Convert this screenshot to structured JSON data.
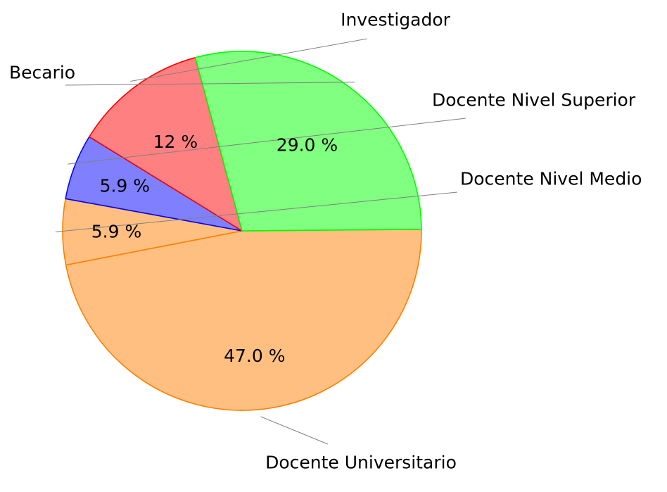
{
  "chart_data": {
    "type": "pie",
    "slices": [
      {
        "name": "Docente Universitario",
        "value": 47.0,
        "label": "47.0 %",
        "color": "#ffbf80",
        "edge": "#ff8000"
      },
      {
        "name": "Docente Nivel Medio",
        "value": 5.9,
        "label": "5.9 %",
        "color": "#ffbf80",
        "edge": "#ff8000"
      },
      {
        "name": "Docente Nivel Superior",
        "value": 5.9,
        "label": "5.9 %",
        "color": "#8080ff",
        "edge": "#0000ff"
      },
      {
        "name": "Investigador",
        "value": 12,
        "label": "12 %",
        "color": "#ff8080",
        "edge": "#ff0000"
      },
      {
        "name": "Becario",
        "value": 29.0,
        "label": "29.0 %",
        "color": "#80ff80",
        "edge": "#00ff00"
      }
    ]
  }
}
